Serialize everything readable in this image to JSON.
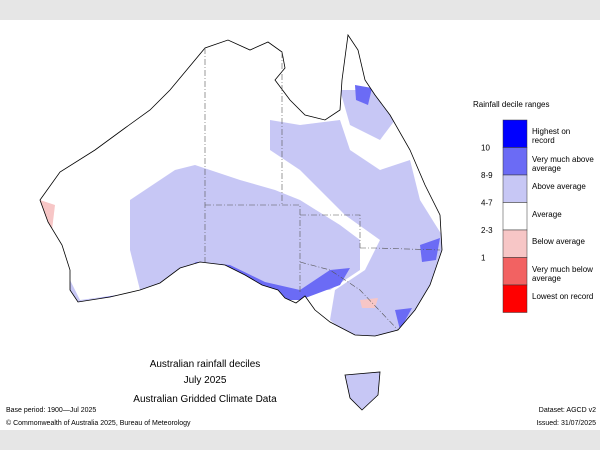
{
  "map": {
    "title": [
      "Australian rainfall deciles",
      "July 2025",
      "Australian Gridded Climate Data"
    ],
    "legend": {
      "title": "Rainfall decile ranges",
      "items": [
        {
          "label": "Highest on record",
          "color": "#0000ff"
        },
        {
          "label": "Very much above average",
          "decile": "10",
          "color": "#6b6bf5"
        },
        {
          "label": "Above average",
          "decile": "8-9",
          "color": "#c7c7f5"
        },
        {
          "label": "Average",
          "decile": "4-7",
          "color": "#ffffff"
        },
        {
          "label": "Below average",
          "decile": "2-3",
          "color": "#f7c6c6"
        },
        {
          "label": "Very much below average",
          "decile": "1",
          "color": "#f26262"
        },
        {
          "label": "Lowest on record",
          "color": "#ff0000"
        }
      ]
    },
    "footer": {
      "base_period": "Base period: 1900—Jul 2025",
      "dataset": "Dataset: AGCD v2",
      "copyright": "© Commonwealth of Australia 2025, Bureau of Meteorology",
      "issued": "Issued: 31/07/2025"
    }
  }
}
